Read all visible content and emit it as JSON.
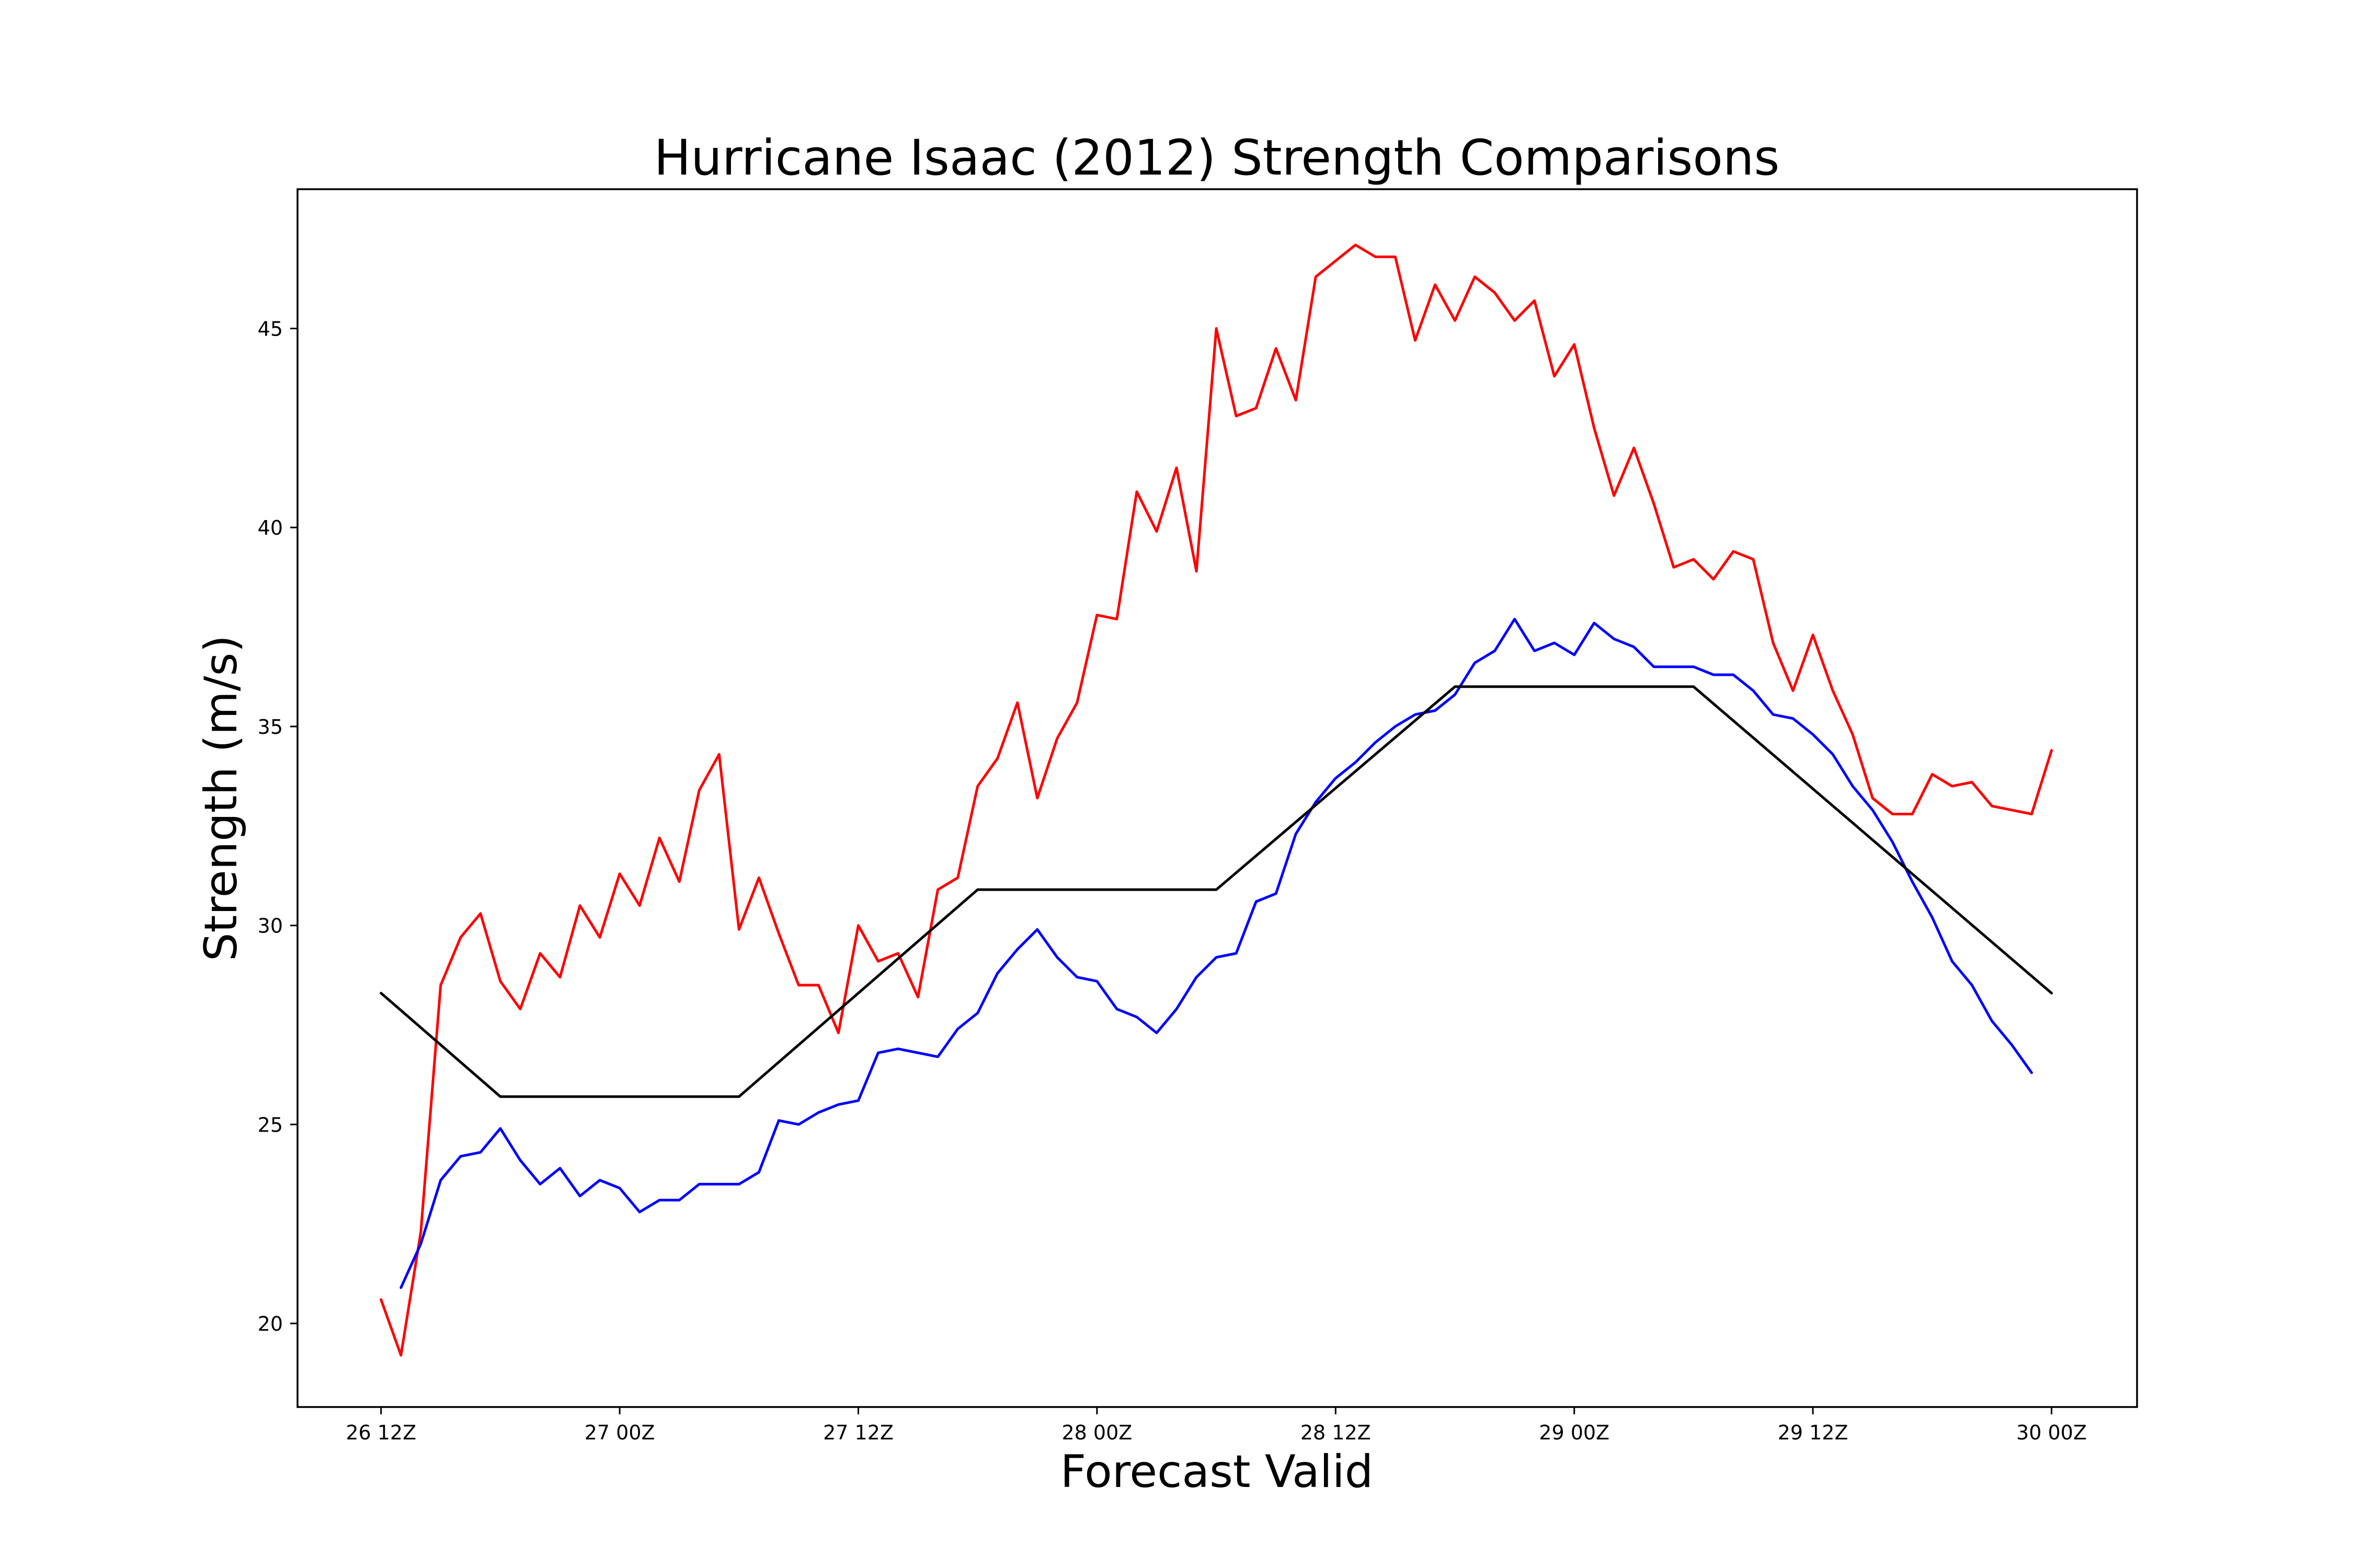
{
  "chart_data": {
    "type": "line",
    "title": "Hurricane Isaac (2012) Strength Comparisons",
    "xlabel": "Forecast Valid",
    "ylabel": "Strength (m/s)",
    "x_unit": "hours from 26 12Z",
    "xlim": [
      -4.2,
      88.3
    ],
    "ylim": [
      17.9,
      48.5
    ],
    "grid": false,
    "x_ticks": [
      {
        "x": 0,
        "label": "26 12Z"
      },
      {
        "x": 12,
        "label": "27 00Z"
      },
      {
        "x": 24,
        "label": "27 12Z"
      },
      {
        "x": 36,
        "label": "28 00Z"
      },
      {
        "x": 48,
        "label": "28 12Z"
      },
      {
        "x": 60,
        "label": "29 00Z"
      },
      {
        "x": 72,
        "label": "29 12Z"
      },
      {
        "x": 84,
        "label": "30 00Z"
      }
    ],
    "y_ticks": [
      {
        "y": 20,
        "label": "20"
      },
      {
        "y": 25,
        "label": "25"
      },
      {
        "y": 30,
        "label": "30"
      },
      {
        "y": 35,
        "label": "35"
      },
      {
        "y": 40,
        "label": "40"
      },
      {
        "y": 45,
        "label": "45"
      }
    ],
    "series": [
      {
        "name": "red",
        "color": "#ff0000",
        "x": [
          0,
          1,
          2,
          3,
          4,
          5,
          6,
          7,
          8,
          9,
          10,
          11,
          12,
          13,
          14,
          15,
          16,
          17,
          18,
          19,
          20,
          21,
          22,
          23,
          24,
          25,
          26,
          27,
          28,
          29,
          30,
          31,
          32,
          33,
          34,
          35,
          36,
          37,
          38,
          39,
          40,
          41,
          42,
          43,
          44,
          45,
          46,
          47,
          48,
          49,
          50,
          51,
          52,
          53,
          54,
          55,
          56,
          57,
          58,
          59,
          60,
          61,
          62,
          63,
          64,
          65,
          66,
          67,
          68,
          69,
          70,
          71,
          72,
          73,
          74,
          75,
          76,
          77,
          78,
          79,
          80,
          81,
          82,
          83,
          84
        ],
        "values": [
          20.6,
          19.2,
          22.3,
          28.5,
          29.7,
          30.3,
          28.6,
          27.9,
          29.3,
          28.7,
          30.5,
          29.7,
          31.3,
          30.5,
          32.2,
          31.1,
          33.4,
          34.3,
          29.9,
          31.2,
          29.8,
          28.5,
          28.5,
          27.3,
          30.0,
          29.1,
          29.3,
          28.2,
          30.9,
          31.2,
          33.5,
          34.2,
          35.6,
          33.2,
          34.7,
          35.6,
          37.8,
          37.7,
          40.9,
          39.9,
          41.5,
          38.9,
          45.0,
          42.8,
          43.0,
          44.5,
          43.2,
          46.3,
          46.7,
          47.1,
          46.8,
          46.8,
          44.7,
          46.1,
          45.2,
          46.3,
          45.9,
          45.2,
          45.7,
          43.8,
          44.6,
          42.5,
          40.8,
          42.0,
          40.6,
          39.0,
          39.2,
          38.7,
          39.4,
          39.2,
          37.1,
          35.9,
          37.3,
          35.9,
          34.8,
          33.2,
          32.8,
          32.8,
          33.8,
          33.5,
          33.6,
          33.0,
          32.9,
          32.8,
          34.4
        ]
      },
      {
        "name": "blue",
        "color": "#0000ff",
        "x": [
          1,
          2,
          3,
          4,
          5,
          6,
          7,
          8,
          9,
          10,
          11,
          12,
          13,
          14,
          15,
          16,
          17,
          18,
          19,
          20,
          21,
          22,
          23,
          24,
          25,
          26,
          27,
          28,
          29,
          30,
          31,
          32,
          33,
          34,
          35,
          36,
          37,
          38,
          39,
          40,
          41,
          42,
          43,
          44,
          45,
          46,
          47,
          48,
          49,
          50,
          51,
          52,
          53,
          54,
          55,
          56,
          57,
          58,
          59,
          60,
          61,
          62,
          63,
          64,
          65,
          66,
          67,
          68,
          69,
          70,
          71,
          72,
          73,
          74,
          75,
          76,
          77,
          78,
          79,
          80,
          81,
          82,
          83
        ],
        "values": [
          20.9,
          22.0,
          23.6,
          24.2,
          24.3,
          24.9,
          24.1,
          23.5,
          23.9,
          23.2,
          23.6,
          23.4,
          22.8,
          23.1,
          23.1,
          23.5,
          23.5,
          23.5,
          23.8,
          25.1,
          25.0,
          25.3,
          25.5,
          25.6,
          26.8,
          26.9,
          26.8,
          26.7,
          27.4,
          27.8,
          28.8,
          29.4,
          29.9,
          29.2,
          28.7,
          28.6,
          27.9,
          27.7,
          27.3,
          27.9,
          28.7,
          29.2,
          29.3,
          30.6,
          30.8,
          32.3,
          33.1,
          33.7,
          34.1,
          34.6,
          35.0,
          35.3,
          35.4,
          35.8,
          36.6,
          36.9,
          37.7,
          36.9,
          37.1,
          36.8,
          37.6,
          37.2,
          37.0,
          36.5,
          36.5,
          36.5,
          36.3,
          36.3,
          35.9,
          35.3,
          35.2,
          34.8,
          34.3,
          33.5,
          32.9,
          32.1,
          31.1,
          30.2,
          29.1,
          28.5,
          27.6,
          27.0,
          26.3
        ]
      },
      {
        "name": "black",
        "color": "#000000",
        "x": [
          0,
          6,
          18,
          30,
          42,
          54,
          66,
          84
        ],
        "values": [
          28.3,
          25.7,
          25.7,
          30.9,
          30.9,
          36.0,
          36.0,
          28.3
        ]
      }
    ]
  }
}
